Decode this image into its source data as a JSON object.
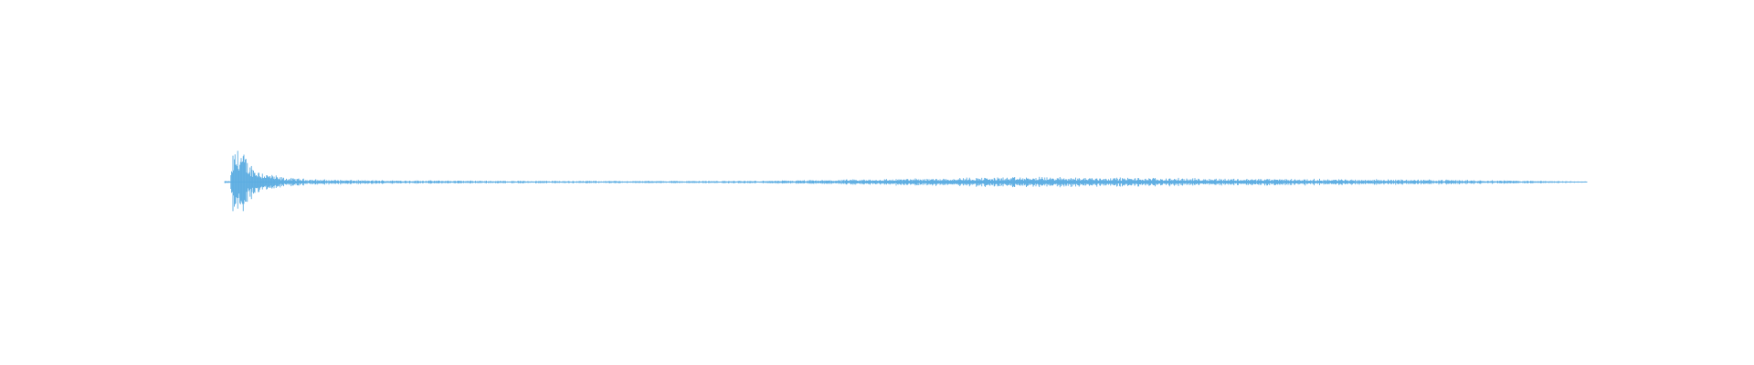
{
  "chart_data": {
    "type": "waveform",
    "color": "#5DADE2",
    "grid": false,
    "axes_visible": false,
    "amplitude_range": [
      -1,
      1
    ],
    "envelope": {
      "t": [
        0.0,
        0.004,
        0.006,
        0.011,
        0.014,
        0.017,
        0.024,
        0.03,
        0.04,
        0.05,
        0.07,
        0.1,
        0.2,
        0.3,
        0.4,
        0.45,
        0.5,
        0.55,
        0.6,
        0.65,
        0.7,
        0.8,
        0.9,
        0.95,
        1.0
      ],
      "amplitude": [
        0.03,
        0.03,
        0.75,
        1.0,
        0.8,
        0.55,
        0.35,
        0.25,
        0.14,
        0.1,
        0.07,
        0.05,
        0.035,
        0.03,
        0.035,
        0.06,
        0.09,
        0.12,
        0.13,
        0.12,
        0.1,
        0.08,
        0.06,
        0.04,
        0.015
      ]
    }
  }
}
